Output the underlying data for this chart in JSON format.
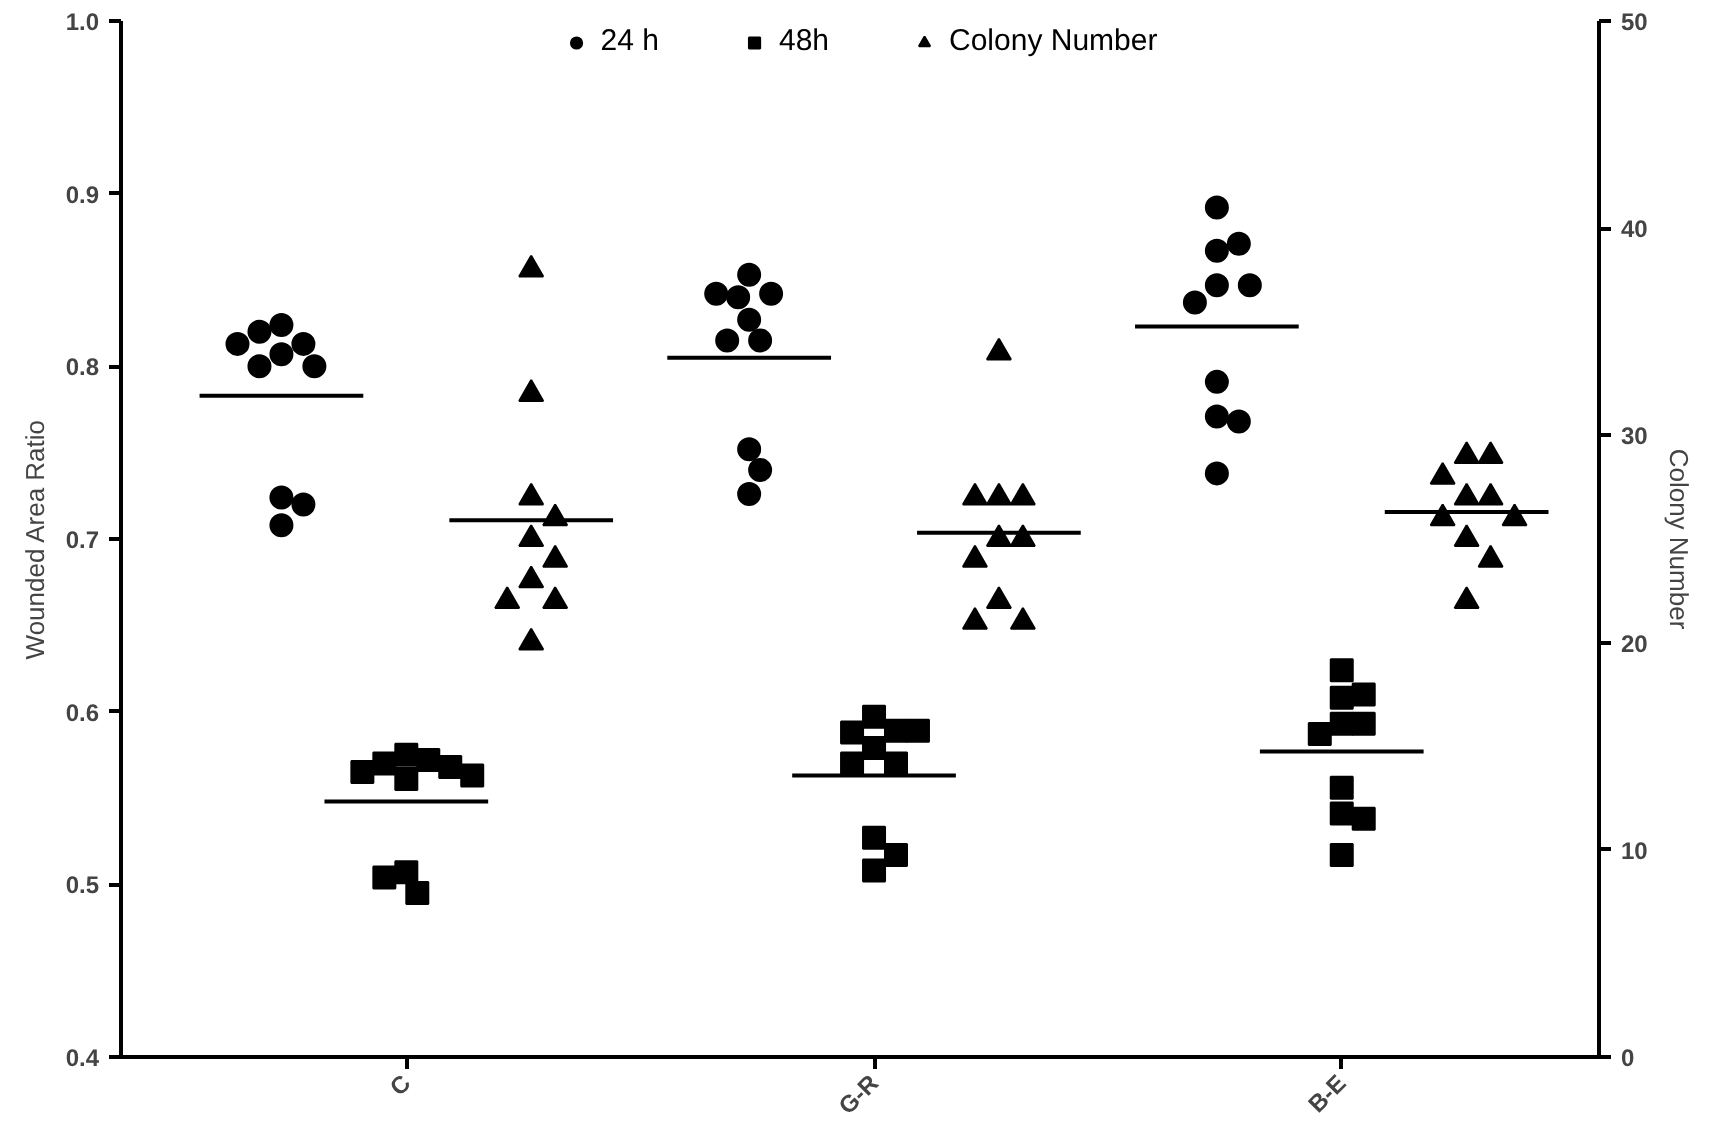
{
  "chart_data": {
    "type": "scatter",
    "ylabel": "Wounded Area Ratio",
    "y2label": "Colony Number",
    "categories": [
      "C",
      "G-R",
      "B-E"
    ],
    "ylim": [
      0.4,
      1.0
    ],
    "yticks": [
      0.4,
      0.5,
      0.6,
      0.7,
      0.8,
      0.9,
      {
        "value": 1.0,
        "label": "1.0"
      }
    ],
    "y2lim": [
      0,
      50
    ],
    "y2ticks": [
      0,
      10,
      20,
      30,
      40,
      50
    ],
    "grid": false,
    "legend": "top",
    "series": [
      {
        "name": "24 h",
        "color": "#000000",
        "marker": "circle",
        "x": [
          "C",
          "C",
          "C",
          "C",
          "C",
          "C",
          "C",
          "C",
          "C",
          "C",
          "G-R",
          "G-R",
          "G-R",
          "G-R",
          "G-R",
          "G-R",
          "G-R",
          "G-R",
          "G-R",
          "G-R",
          "B-E",
          "B-E",
          "B-E",
          "B-E",
          "B-E",
          "B-E",
          "B-E",
          "B-E",
          "B-E",
          "B-E"
        ],
        "values": [
          0.824,
          0.813,
          0.82,
          0.813,
          0.807,
          0.8,
          0.8,
          0.724,
          0.72,
          0.708,
          0.853,
          0.842,
          0.84,
          0.842,
          0.827,
          0.815,
          0.815,
          0.752,
          0.74,
          0.726,
          0.892,
          0.867,
          0.871,
          0.847,
          0.847,
          0.837,
          0.791,
          0.771,
          0.768,
          0.738
        ]
      },
      {
        "name": "48h",
        "color": "#000000",
        "marker": "square",
        "x": [
          "C",
          "C",
          "C",
          "C",
          "C",
          "C",
          "C",
          "C",
          "C",
          "C",
          "G-R",
          "G-R",
          "G-R",
          "G-R",
          "G-R",
          "G-R",
          "G-R",
          "G-R",
          "G-R",
          "G-R",
          "B-E",
          "B-E",
          "B-E",
          "B-E",
          "B-E",
          "B-E",
          "B-E",
          "B-E",
          "B-E",
          "B-E"
        ],
        "values": [
          0.507,
          0.495,
          0.504,
          0.575,
          0.572,
          0.57,
          0.568,
          0.565,
          0.563,
          0.561,
          0.597,
          0.589,
          0.588,
          0.589,
          0.579,
          0.57,
          0.57,
          0.527,
          0.517,
          0.508,
          0.624,
          0.608,
          0.61,
          0.593,
          0.593,
          0.587,
          0.556,
          0.541,
          0.538,
          0.517
        ]
      },
      {
        "name": "Colony Number",
        "color": "#000000",
        "marker": "triangle",
        "axis": "y2",
        "x": [
          "C",
          "C",
          "C",
          "C",
          "C",
          "C",
          "C",
          "C",
          "C",
          "C",
          "G-R",
          "G-R",
          "G-R",
          "G-R",
          "G-R",
          "G-R",
          "G-R",
          "G-R",
          "G-R",
          "G-R",
          "B-E",
          "B-E",
          "B-E",
          "B-E",
          "B-E",
          "B-E",
          "B-E",
          "B-E",
          "B-E",
          "B-E"
        ],
        "values": [
          38,
          32,
          27,
          26,
          25,
          24,
          23,
          22,
          22,
          20,
          34,
          27,
          27,
          27,
          25,
          25,
          24,
          22,
          21,
          21,
          29,
          29,
          28,
          27,
          27,
          26,
          26,
          25,
          24,
          22
        ]
      }
    ],
    "ref_lines": [
      {
        "axis": "y",
        "value": 0.783,
        "color": "#000000"
      },
      {
        "axis": "y",
        "value": 0.805,
        "color": "#000000"
      },
      {
        "axis": "y",
        "value": 0.823,
        "color": "#000000"
      },
      {
        "axis": "y",
        "value": 0.548,
        "color": "#000000"
      },
      {
        "axis": "y",
        "value": 0.563,
        "color": "#000000"
      },
      {
        "axis": "y",
        "value": 0.577,
        "color": "#000000"
      },
      {
        "axis": "y2",
        "value": 25.9,
        "color": "#000000"
      },
      {
        "axis": "y2",
        "value": 25.3,
        "color": "#000000"
      },
      {
        "axis": "y2",
        "value": 26.3,
        "color": "#000000"
      }
    ]
  }
}
